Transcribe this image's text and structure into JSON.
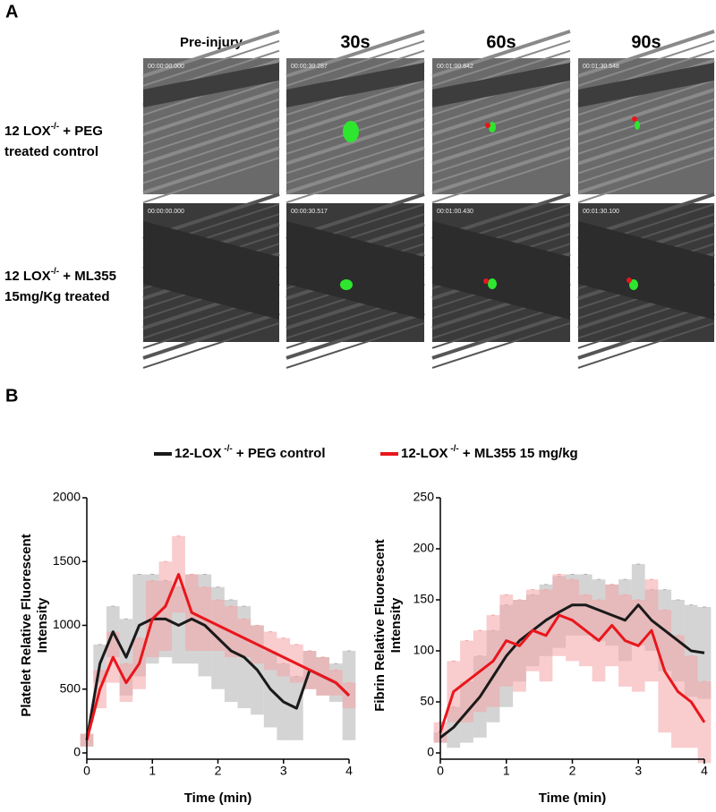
{
  "panel_a": {
    "label": "A",
    "columns": [
      "Pre-injury",
      "30s",
      "60s",
      "90s"
    ],
    "rows": [
      {
        "label": [
          "12 LOX",
          "-/-",
          " + PEG",
          "treated control"
        ],
        "timestamps": [
          "00:00:00.000",
          "00:00:30.287",
          "00:01:00.842",
          "00:01:30.548"
        ]
      },
      {
        "label": [
          "12 LOX",
          "-/-",
          " + ML355",
          "15mg/Kg treated"
        ],
        "timestamps": [
          "00:00:00.000",
          "00:00:30.517",
          "00:01:00.430",
          "00:01:30.100"
        ]
      }
    ]
  },
  "panel_b": {
    "label": "B"
  },
  "chart_data": [
    {
      "type": "line",
      "xlabel": "Time (min)",
      "ylabel": [
        "Platelet Relative Fluorescent",
        "Intensity"
      ],
      "x": [
        0,
        0.2,
        0.4,
        0.6,
        0.8,
        1,
        1.2,
        1.4,
        1.6,
        1.8,
        2,
        2.2,
        2.4,
        2.6,
        2.8,
        3,
        3.2,
        3.4,
        3.6,
        3.8,
        4
      ],
      "series": [
        {
          "name": "12-LOX",
          "name_sup": " -/-",
          "name_rest": " + PEG control",
          "color": "#1a1a1a",
          "band_color": "#b0b0b0",
          "values": [
            100,
            700,
            950,
            750,
            1000,
            1050,
            1050,
            1000,
            1050,
            1000,
            900,
            800,
            750,
            650,
            500,
            400,
            350,
            650,
            600,
            550,
            450
          ],
          "errors": [
            50,
            150,
            200,
            300,
            400,
            350,
            300,
            300,
            350,
            400,
            400,
            400,
            400,
            350,
            300,
            300,
            250,
            150,
            150,
            150,
            350
          ]
        },
        {
          "name": "12-LOX",
          "name_sup": " -/-",
          "name_rest": " + ML355 15 mg/kg",
          "color": "#e8161b",
          "band_color": "#f4a3a5",
          "values": [
            100,
            500,
            750,
            550,
            700,
            1050,
            1150,
            1400,
            1100,
            1050,
            1000,
            950,
            900,
            850,
            800,
            750,
            700,
            650,
            600,
            550,
            450
          ],
          "errors": [
            50,
            150,
            200,
            150,
            200,
            300,
            350,
            300,
            300,
            250,
            200,
            200,
            150,
            150,
            150,
            150,
            150,
            150,
            150,
            100,
            100
          ]
        }
      ],
      "xlim": [
        0,
        4
      ],
      "ylim": [
        0,
        2000
      ],
      "xticks": [
        0,
        1,
        2,
        3,
        4
      ],
      "yticks": [
        0,
        500,
        1000,
        1500,
        2000
      ]
    },
    {
      "type": "line",
      "xlabel": "Time (min)",
      "ylabel": [
        "Fibrin Relative Fluorescent",
        "Intensity"
      ],
      "x": [
        0,
        0.2,
        0.4,
        0.6,
        0.8,
        1,
        1.2,
        1.4,
        1.6,
        1.8,
        2,
        2.2,
        2.4,
        2.6,
        2.8,
        3,
        3.2,
        3.4,
        3.6,
        3.8,
        4
      ],
      "series": [
        {
          "color": "#1a1a1a",
          "band_color": "#b0b0b0",
          "values": [
            15,
            25,
            40,
            55,
            75,
            95,
            110,
            120,
            130,
            138,
            145,
            145,
            140,
            135,
            130,
            145,
            130,
            120,
            110,
            100,
            98
          ],
          "errors": [
            5,
            20,
            30,
            40,
            45,
            50,
            40,
            35,
            35,
            35,
            30,
            30,
            30,
            30,
            40,
            40,
            30,
            40,
            40,
            45,
            45
          ]
        },
        {
          "color": "#e8161b",
          "band_color": "#f4a3a5",
          "values": [
            20,
            60,
            70,
            80,
            90,
            110,
            105,
            120,
            115,
            135,
            130,
            120,
            110,
            125,
            110,
            105,
            120,
            80,
            60,
            50,
            30
          ],
          "errors": [
            10,
            30,
            40,
            40,
            45,
            45,
            45,
            40,
            45,
            40,
            40,
            35,
            40,
            40,
            45,
            45,
            50,
            60,
            55,
            45,
            40
          ]
        }
      ],
      "xlim": [
        0,
        4
      ],
      "ylim": [
        0,
        250
      ],
      "xticks": [
        0,
        1,
        2,
        3,
        4
      ],
      "yticks": [
        0,
        50,
        100,
        150,
        200,
        250
      ]
    }
  ]
}
